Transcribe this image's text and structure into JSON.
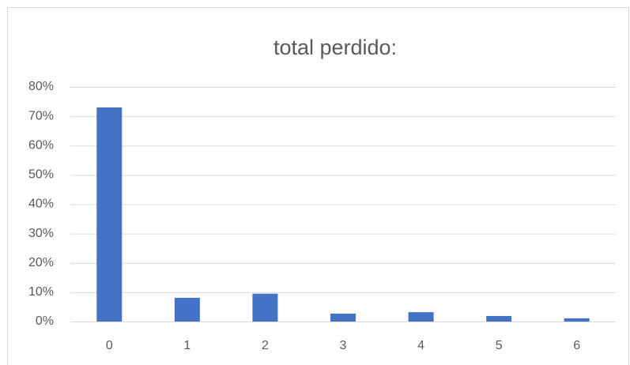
{
  "chart_data": {
    "type": "bar",
    "title": "total perdido:",
    "categories": [
      "0",
      "1",
      "2",
      "3",
      "4",
      "5",
      "6"
    ],
    "values": [
      73,
      8.1,
      9.5,
      2.7,
      3.2,
      1.9,
      1.1
    ],
    "color": "#4472c4",
    "ylim": [
      0,
      80
    ],
    "yticks": [
      {
        "value": 0,
        "label": "0%"
      },
      {
        "value": 10,
        "label": "10%"
      },
      {
        "value": 20,
        "label": "20%"
      },
      {
        "value": 30,
        "label": "30%"
      },
      {
        "value": 40,
        "label": "40%"
      },
      {
        "value": 50,
        "label": "50%"
      },
      {
        "value": 60,
        "label": "60%"
      },
      {
        "value": 70,
        "label": "70%"
      },
      {
        "value": 80,
        "label": "80%"
      }
    ],
    "grid": true
  }
}
